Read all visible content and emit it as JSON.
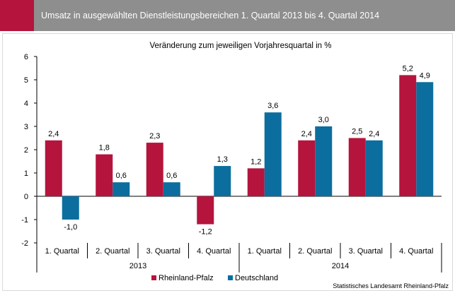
{
  "header": {
    "title": "Umsatz in ausgewählten Dienstleistungsbereichen 1. Quartal 2013 bis 4. Quartal 2014",
    "accent_color": "#b5143d",
    "bar_color": "#8e8e8e"
  },
  "chart_data": {
    "type": "bar",
    "title": "Veränderung zum jeweiligen Vorjahresquartal  in %",
    "categories": [
      "1. Quartal",
      "2. Quartal",
      "3. Quartal",
      "4. Quartal",
      "1. Quartal",
      "2. Quartal",
      "3. Quartal",
      "4. Quartal"
    ],
    "year_groups": [
      {
        "label": "2013",
        "count": 4
      },
      {
        "label": "2014",
        "count": 4
      }
    ],
    "series": [
      {
        "name": "Rheinland-Pfalz",
        "color": "#b5143d",
        "values": [
          2.4,
          1.8,
          2.3,
          -1.2,
          1.2,
          2.4,
          2.5,
          5.2
        ],
        "labels": [
          "2,4",
          "1,8",
          "2,3",
          "-1,2",
          "1,2",
          "2,4",
          "2,5",
          "5,2"
        ]
      },
      {
        "name": "Deutschland",
        "color": "#0b6e9e",
        "values": [
          -1.0,
          0.6,
          0.6,
          1.3,
          3.6,
          3.0,
          2.4,
          4.9
        ],
        "labels": [
          "-1,0",
          "0,6",
          "0,6",
          "1,3",
          "3,6",
          "3,0",
          "2,4",
          "4,9"
        ]
      }
    ],
    "ylim": [
      -2,
      6
    ],
    "yticks": [
      -2,
      -1,
      0,
      1,
      2,
      3,
      4,
      5,
      6
    ],
    "ytick_labels": [
      "-2",
      "-1",
      "0",
      "1",
      "2",
      "3",
      "4",
      "5",
      "6"
    ],
    "grid": false,
    "legend_position": "bottom-center"
  },
  "source": "Statistisches Landesamt Rheinland-Pfalz"
}
